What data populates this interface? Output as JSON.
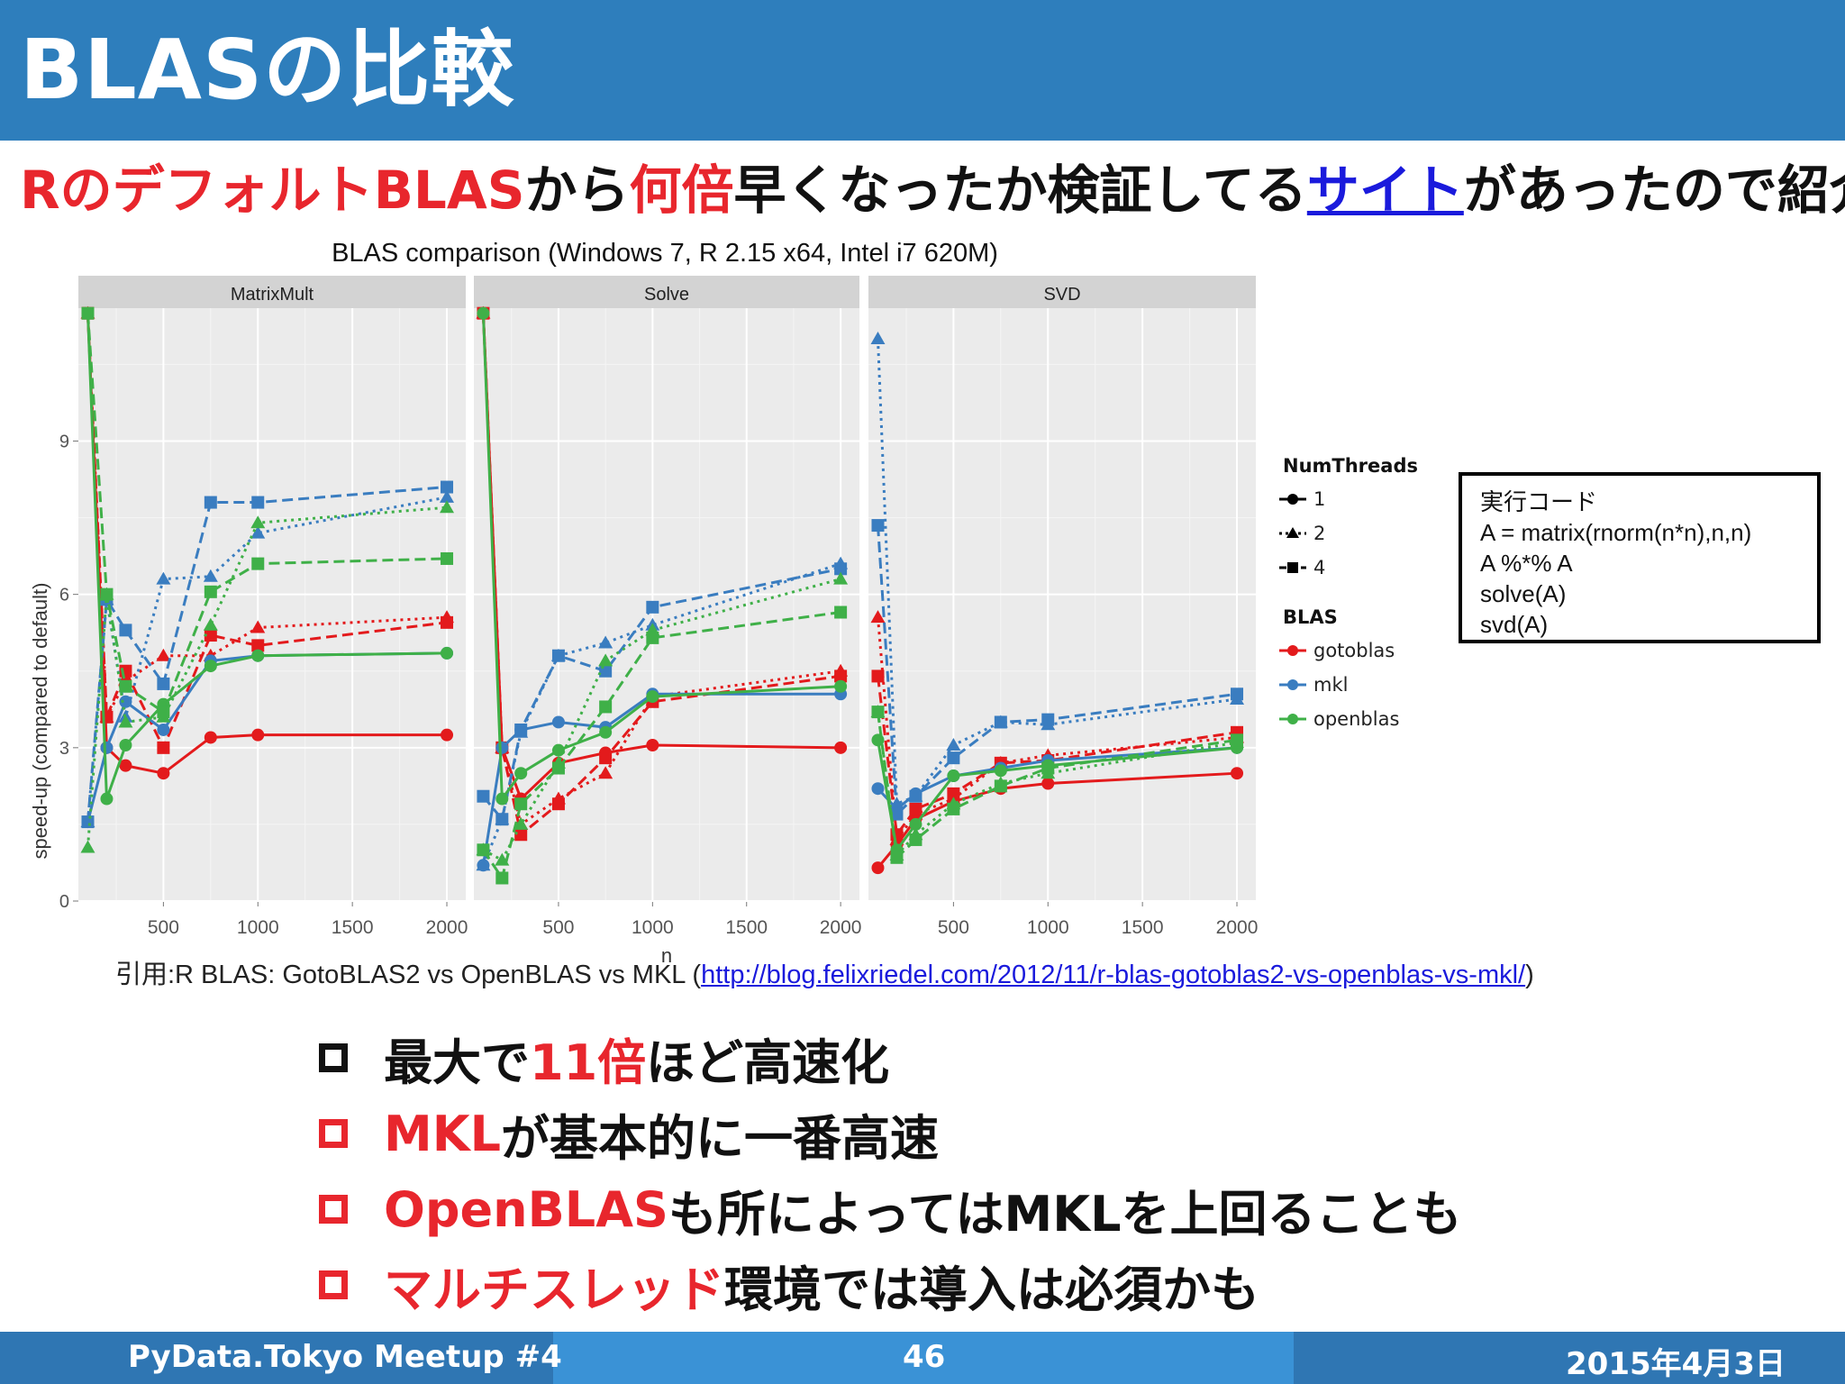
{
  "header": {
    "title": "BLASの比較"
  },
  "subtitle": {
    "p1": "R",
    "p2": "のデフォルト",
    "p3": "BLAS",
    "p4": "から",
    "p5": "何倍",
    "p6": "早くなったか検証してる",
    "p7": "サイト",
    "p8": "があったので紹介"
  },
  "chart_data": {
    "type": "line",
    "title": "BLAS comparison (Windows 7, R 2.15 x64, Intel i7 620M)",
    "xlabel": "n",
    "ylabel": "speed-up (compared to default)",
    "x_ticks": [
      "500",
      "1000",
      "1500",
      "2000"
    ],
    "y_ticks": [
      "0",
      "3",
      "6",
      "9"
    ],
    "xlim": [
      50,
      2100
    ],
    "ylim": [
      0,
      11.6
    ],
    "grid": true,
    "legend_position": "right",
    "facets": [
      "MatrixMult",
      "Solve",
      "SVD"
    ],
    "legend": {
      "threads_title": "NumThreads",
      "threads": [
        "1",
        "2",
        "4"
      ],
      "blas_title": "BLAS",
      "blas": [
        "gotoblas",
        "mkl",
        "openblas"
      ]
    },
    "colors": {
      "gotoblas": "#e31a1c",
      "mkl": "#3a7dc0",
      "openblas": "#3fb048"
    },
    "x": [
      100,
      200,
      300,
      500,
      750,
      1000,
      2000
    ],
    "series": [
      {
        "facet": "MatrixMult",
        "blas": "gotoblas",
        "threads": "1",
        "values": [
          11.5,
          3.0,
          2.65,
          2.5,
          3.2,
          3.25,
          3.25
        ]
      },
      {
        "facet": "MatrixMult",
        "blas": "gotoblas",
        "threads": "2",
        "values": [
          11.5,
          3.6,
          4.3,
          4.8,
          4.8,
          5.35,
          5.55
        ]
      },
      {
        "facet": "MatrixMult",
        "blas": "gotoblas",
        "threads": "4",
        "values": [
          11.5,
          3.6,
          4.5,
          3.0,
          5.2,
          5.0,
          5.45
        ]
      },
      {
        "facet": "MatrixMult",
        "blas": "mkl",
        "threads": "1",
        "values": [
          1.55,
          3.0,
          3.9,
          3.35,
          4.7,
          4.8,
          4.85
        ]
      },
      {
        "facet": "MatrixMult",
        "blas": "mkl",
        "threads": "2",
        "values": [
          1.55,
          5.9,
          3.6,
          6.3,
          6.35,
          7.2,
          7.9
        ]
      },
      {
        "facet": "MatrixMult",
        "blas": "mkl",
        "threads": "4",
        "values": [
          1.55,
          5.9,
          5.3,
          4.25,
          7.8,
          7.8,
          8.1
        ]
      },
      {
        "facet": "MatrixMult",
        "blas": "openblas",
        "threads": "1",
        "values": [
          11.5,
          2.0,
          3.05,
          3.85,
          4.6,
          4.8,
          4.85
        ]
      },
      {
        "facet": "MatrixMult",
        "blas": "openblas",
        "threads": "2",
        "values": [
          1.05,
          6.0,
          3.5,
          3.6,
          5.4,
          7.4,
          7.7
        ]
      },
      {
        "facet": "MatrixMult",
        "blas": "openblas",
        "threads": "4",
        "values": [
          11.5,
          6.0,
          4.2,
          3.7,
          6.05,
          6.6,
          6.7
        ]
      },
      {
        "facet": "Solve",
        "blas": "gotoblas",
        "threads": "1",
        "values": [
          11.5,
          3.0,
          2.0,
          2.7,
          2.9,
          3.05,
          3.0
        ]
      },
      {
        "facet": "Solve",
        "blas": "gotoblas",
        "threads": "2",
        "values": [
          11.5,
          3.0,
          1.5,
          2.0,
          2.5,
          4.0,
          4.5
        ]
      },
      {
        "facet": "Solve",
        "blas": "gotoblas",
        "threads": "4",
        "values": [
          11.5,
          3.0,
          1.3,
          1.9,
          2.8,
          3.9,
          4.4
        ]
      },
      {
        "facet": "Solve",
        "blas": "mkl",
        "threads": "1",
        "values": [
          0.7,
          3.0,
          3.35,
          3.5,
          3.4,
          4.05,
          4.05
        ]
      },
      {
        "facet": "Solve",
        "blas": "mkl",
        "threads": "2",
        "values": [
          0.7,
          1.6,
          3.3,
          4.8,
          5.05,
          5.4,
          6.6
        ]
      },
      {
        "facet": "Solve",
        "blas": "mkl",
        "threads": "4",
        "values": [
          2.05,
          1.6,
          3.35,
          4.8,
          4.5,
          5.75,
          6.5
        ]
      },
      {
        "facet": "Solve",
        "blas": "openblas",
        "threads": "1",
        "values": [
          11.5,
          2.0,
          2.5,
          2.95,
          3.3,
          4.0,
          4.2
        ]
      },
      {
        "facet": "Solve",
        "blas": "openblas",
        "threads": "2",
        "values": [
          1.0,
          0.8,
          1.5,
          2.7,
          4.7,
          5.3,
          6.3
        ]
      },
      {
        "facet": "Solve",
        "blas": "openblas",
        "threads": "4",
        "values": [
          1.0,
          0.45,
          1.9,
          2.6,
          3.8,
          5.15,
          5.65
        ]
      },
      {
        "facet": "SVD",
        "blas": "gotoblas",
        "threads": "1",
        "values": [
          0.65,
          1.1,
          1.6,
          1.95,
          2.2,
          2.3,
          2.5
        ]
      },
      {
        "facet": "SVD",
        "blas": "gotoblas",
        "threads": "2",
        "values": [
          5.55,
          1.2,
          1.7,
          2.0,
          2.7,
          2.85,
          3.2
        ]
      },
      {
        "facet": "SVD",
        "blas": "gotoblas",
        "threads": "4",
        "values": [
          4.4,
          1.3,
          1.8,
          2.1,
          2.7,
          2.75,
          3.3
        ]
      },
      {
        "facet": "SVD",
        "blas": "mkl",
        "threads": "1",
        "values": [
          2.2,
          1.8,
          2.1,
          2.45,
          2.6,
          2.75,
          3.0
        ]
      },
      {
        "facet": "SVD",
        "blas": "mkl",
        "threads": "2",
        "values": [
          11.0,
          1.9,
          2.05,
          3.05,
          3.5,
          3.45,
          3.95
        ]
      },
      {
        "facet": "SVD",
        "blas": "mkl",
        "threads": "4",
        "values": [
          7.35,
          1.7,
          2.05,
          2.8,
          3.5,
          3.55,
          4.05
        ]
      },
      {
        "facet": "SVD",
        "blas": "openblas",
        "threads": "1",
        "values": [
          3.15,
          1.0,
          1.5,
          2.45,
          2.55,
          2.65,
          3.0
        ]
      },
      {
        "facet": "SVD",
        "blas": "openblas",
        "threads": "2",
        "values": [
          3.7,
          0.9,
          1.3,
          1.9,
          2.3,
          2.5,
          3.1
        ]
      },
      {
        "facet": "SVD",
        "blas": "openblas",
        "threads": "4",
        "values": [
          3.7,
          0.85,
          1.2,
          1.8,
          2.25,
          2.6,
          3.15
        ]
      }
    ]
  },
  "code_box": {
    "title": "実行コード",
    "lines": [
      "A = matrix(rnorm(n*n),n,n)",
      "A %*% A",
      "solve(A)",
      "svd(A)"
    ]
  },
  "citation": {
    "prefix": "引用:R BLAS: GotoBLAS2 vs OpenBLAS vs MKL (",
    "url": "http://blog.felixriedel.com/2012/11/r-blas-gotoblas2-vs-openblas-vs-mkl/",
    "suffix": ")"
  },
  "bullets": [
    {
      "pre": "最大で",
      "red": "11倍",
      "post": "ほど高速化"
    },
    {
      "pre": "",
      "red": "MKL",
      "post": "が基本的に一番高速"
    },
    {
      "pre": "",
      "red": "OpenBLAS",
      "post": "も所によってはMKLを上回ることも"
    },
    {
      "pre": "",
      "red": "マルチスレッド",
      "post": "環境では導入は必須かも"
    }
  ],
  "footer": {
    "left": "PyData.Tokyo Meetup #4",
    "center": "46",
    "right": "2015年4月3日"
  }
}
